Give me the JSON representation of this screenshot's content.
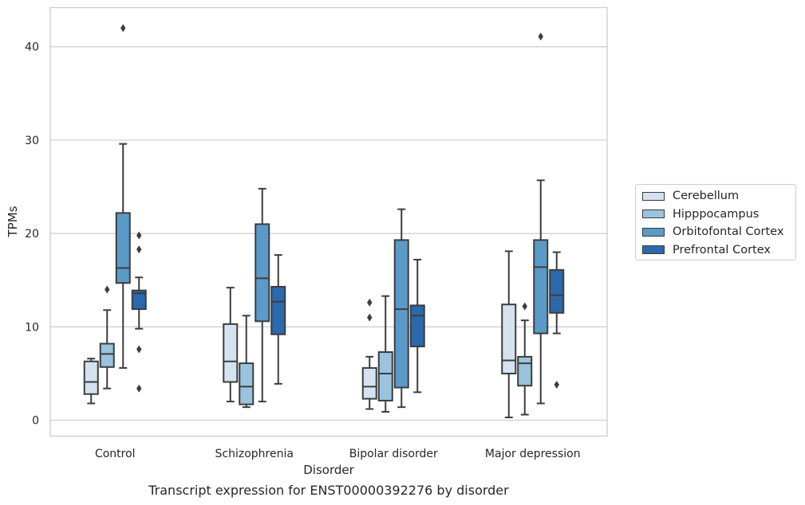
{
  "caption": "Transcript expression for ENST00000392276 by disorder",
  "chart_data": {
    "type": "box",
    "xlabel": "Disorder",
    "ylabel": "TPMs",
    "ylim": [
      -1.7,
      44.2
    ],
    "yticks": [
      0,
      10,
      20,
      30,
      40
    ],
    "grid": "horizontal",
    "legend_position": "right",
    "categories": [
      "Control",
      "Schizophrenia",
      "Bipolar disorder",
      "Major depression"
    ],
    "series": [
      {
        "name": "Cerebellum",
        "color": "#d5e3f0",
        "boxes": [
          {
            "whislo": 1.8,
            "q1": 2.8,
            "med": 4.1,
            "q3": 6.3,
            "whishi": 6.6,
            "fliers": []
          },
          {
            "whislo": 2.0,
            "q1": 4.1,
            "med": 6.3,
            "q3": 10.3,
            "whishi": 14.2,
            "fliers": []
          },
          {
            "whislo": 1.2,
            "q1": 2.3,
            "med": 3.6,
            "q3": 5.6,
            "whishi": 6.8,
            "fliers": [
              11.0,
              12.6
            ]
          },
          {
            "whislo": 0.3,
            "q1": 5.0,
            "med": 6.4,
            "q3": 12.4,
            "whishi": 18.1,
            "fliers": []
          }
        ]
      },
      {
        "name": "Hipppocampus",
        "color": "#9ac3de",
        "boxes": [
          {
            "whislo": 3.4,
            "q1": 5.7,
            "med": 7.1,
            "q3": 8.2,
            "whishi": 11.8,
            "fliers": [
              14.0
            ]
          },
          {
            "whislo": 1.4,
            "q1": 1.7,
            "med": 3.6,
            "q3": 6.1,
            "whishi": 11.2,
            "fliers": []
          },
          {
            "whislo": 0.9,
            "q1": 2.1,
            "med": 5.0,
            "q3": 7.3,
            "whishi": 13.3,
            "fliers": []
          },
          {
            "whislo": 0.6,
            "q1": 3.7,
            "med": 6.1,
            "q3": 6.8,
            "whishi": 10.7,
            "fliers": [
              12.2
            ]
          }
        ]
      },
      {
        "name": "Orbitofontal Cortex",
        "color": "#5b9ac8",
        "boxes": [
          {
            "whislo": 5.6,
            "q1": 14.7,
            "med": 16.3,
            "q3": 22.2,
            "whishi": 29.6,
            "fliers": [
              42.0
            ]
          },
          {
            "whislo": 2.0,
            "q1": 10.6,
            "med": 15.2,
            "q3": 21.0,
            "whishi": 24.8,
            "fliers": []
          },
          {
            "whislo": 1.4,
            "q1": 3.5,
            "med": 11.9,
            "q3": 19.3,
            "whishi": 22.6,
            "fliers": []
          },
          {
            "whislo": 1.8,
            "q1": 9.3,
            "med": 16.4,
            "q3": 19.3,
            "whishi": 25.7,
            "fliers": [
              41.1
            ]
          }
        ]
      },
      {
        "name": "Prefrontal Cortex",
        "color": "#2a69ab",
        "boxes": [
          {
            "whislo": 9.8,
            "q1": 11.9,
            "med": 13.6,
            "q3": 13.9,
            "whishi": 15.3,
            "fliers": [
              18.3,
              19.8,
              7.6,
              3.4
            ]
          },
          {
            "whislo": 3.9,
            "q1": 9.2,
            "med": 12.7,
            "q3": 14.3,
            "whishi": 17.7,
            "fliers": []
          },
          {
            "whislo": 3.0,
            "q1": 7.9,
            "med": 11.2,
            "q3": 12.3,
            "whishi": 17.2,
            "fliers": []
          },
          {
            "whislo": 9.3,
            "q1": 11.5,
            "med": 13.4,
            "q3": 16.1,
            "whishi": 18.0,
            "fliers": [
              3.8
            ]
          }
        ]
      }
    ]
  }
}
